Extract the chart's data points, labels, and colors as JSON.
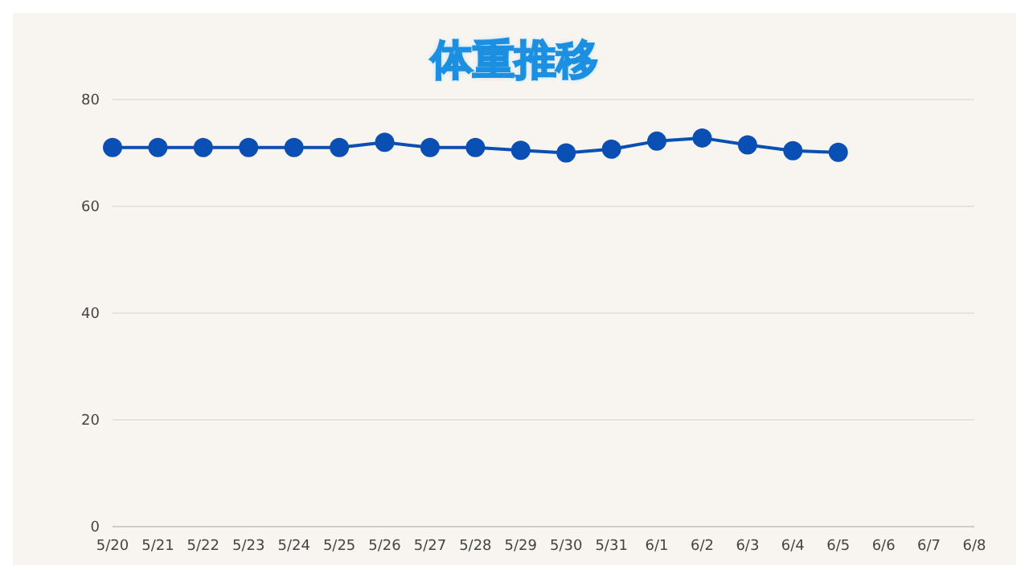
{
  "chart_data": {
    "type": "line",
    "title": "体重推移",
    "categories": [
      "5/20",
      "5/21",
      "5/22",
      "5/23",
      "5/24",
      "5/25",
      "5/26",
      "5/27",
      "5/28",
      "5/29",
      "5/30",
      "5/31",
      "6/1",
      "6/2",
      "6/3",
      "6/4",
      "6/5",
      "6/6",
      "6/7",
      "6/8"
    ],
    "series": [
      {
        "color": "#0a4fb4",
        "values": [
          71,
          71,
          71,
          71,
          71,
          71,
          72,
          71,
          71,
          70.5,
          70,
          70.7,
          72.2,
          72.8,
          71.5,
          70.4,
          70.1,
          null,
          null,
          null
        ]
      }
    ],
    "ylim": [
      0,
      80
    ],
    "yticks": [
      0,
      20,
      40,
      60,
      80
    ],
    "grid": "y",
    "marker": "circle",
    "legend": false
  }
}
